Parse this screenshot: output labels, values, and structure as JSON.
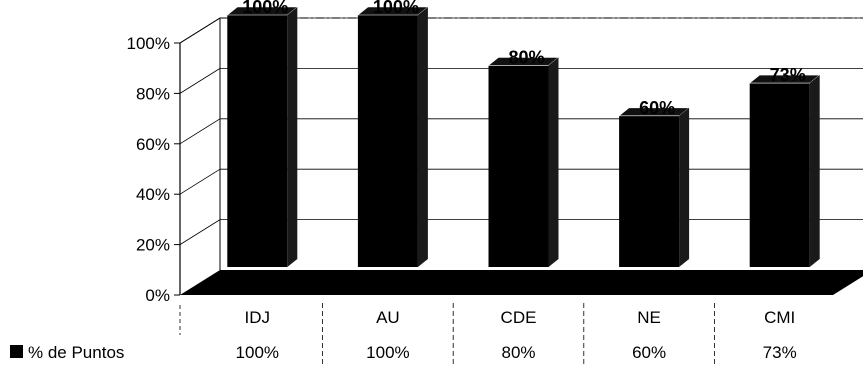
{
  "chart_data": {
    "type": "bar",
    "title": "",
    "xlabel": "",
    "ylabel": "",
    "ylim": [
      0,
      100
    ],
    "y_ticks": [
      "0%",
      "20%",
      "40%",
      "60%",
      "80%",
      "100%"
    ],
    "categories": [
      "IDJ",
      "AU",
      "CDE",
      "NE",
      "CMI"
    ],
    "series": [
      {
        "name": "% de Puntos",
        "values": [
          100,
          100,
          80,
          60,
          73
        ],
        "value_labels": [
          "100%",
          "100%",
          "80%",
          "60%",
          "73%"
        ],
        "color": "#000000"
      }
    ],
    "grid": true,
    "legend": "bottom-left, data table row",
    "style": "3d"
  }
}
